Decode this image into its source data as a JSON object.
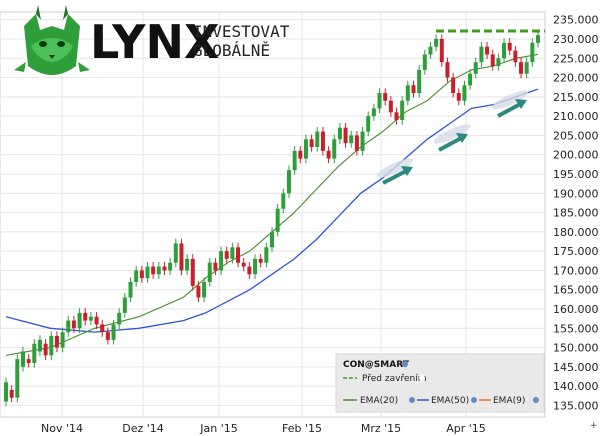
{
  "brand": {
    "name": "LYNX",
    "tagline_line1": "INVESTOVAT",
    "tagline_line2": "GLOBÁLNĚ",
    "logo_icon": "lynx-head-icon",
    "logo_color": "#2e9e3a"
  },
  "legend": {
    "source": "CON@SMART",
    "prev_close_label": "Před zavřením",
    "ema20_label": "EMA(20)",
    "ema50_label": "EMA(50)",
    "ema9_label": "EMA(9)"
  },
  "colors": {
    "up_candle": "#2e9e3a",
    "down_candle": "#c8202a",
    "ema20": "#4a8a2a",
    "ema50": "#2f55d6",
    "ema9": "#e07020",
    "prev_close": "#3e9e1e",
    "arrows": "#2d8a80"
  },
  "chart_data": {
    "type": "candlestick",
    "x_tick_labels": [
      "Nov '14",
      "Dez '14",
      "Jan '15",
      "Feb '15",
      "Mrz '15",
      "Apr '15"
    ],
    "y_tick_labels": [
      "135.000",
      "140.000",
      "145.000",
      "150.000",
      "155.000",
      "160.000",
      "165.000",
      "170.000",
      "175.000",
      "180.000",
      "185.000",
      "190.000",
      "195.000",
      "200.000",
      "205.000",
      "210.000",
      "215.000",
      "220.000",
      "225.000",
      "230.000",
      "235.000"
    ],
    "ylim": [
      132,
      237
    ],
    "y_scale": "linear",
    "grid": true,
    "legend_position": "bottom-right",
    "prev_close": 230,
    "ema20": [
      [
        0,
        148
      ],
      [
        20,
        150
      ],
      [
        40,
        155
      ],
      [
        60,
        158
      ],
      [
        80,
        163
      ],
      [
        90,
        168
      ],
      [
        100,
        172
      ],
      [
        110,
        175
      ],
      [
        120,
        180
      ],
      [
        130,
        185
      ],
      [
        140,
        191
      ],
      [
        150,
        197
      ],
      [
        160,
        202
      ],
      [
        170,
        206
      ],
      [
        180,
        211
      ],
      [
        190,
        214
      ],
      [
        200,
        219
      ],
      [
        210,
        222
      ],
      [
        220,
        223
      ],
      [
        230,
        225
      ],
      [
        240,
        226
      ]
    ],
    "ema50": [
      [
        0,
        158
      ],
      [
        20,
        155
      ],
      [
        40,
        154
      ],
      [
        60,
        155
      ],
      [
        80,
        157
      ],
      [
        90,
        159
      ],
      [
        100,
        162
      ],
      [
        110,
        165
      ],
      [
        120,
        169
      ],
      [
        130,
        173
      ],
      [
        140,
        178
      ],
      [
        150,
        184
      ],
      [
        160,
        190
      ],
      [
        170,
        194
      ],
      [
        180,
        199
      ],
      [
        190,
        204
      ],
      [
        200,
        208
      ],
      [
        210,
        212
      ],
      [
        220,
        213
      ],
      [
        230,
        215
      ],
      [
        240,
        217
      ]
    ],
    "candles": [
      [
        136,
        141
      ],
      [
        139,
        137
      ],
      [
        137,
        147
      ],
      [
        145,
        149
      ],
      [
        147,
        146
      ],
      [
        146,
        151
      ],
      [
        149,
        152
      ],
      [
        151,
        148
      ],
      [
        148,
        153
      ],
      [
        153,
        150
      ],
      [
        150,
        154
      ],
      [
        154,
        157
      ],
      [
        157,
        155
      ],
      [
        155,
        159
      ],
      [
        159,
        157
      ],
      [
        157,
        158
      ],
      [
        158,
        156
      ],
      [
        156,
        154
      ],
      [
        154,
        152
      ],
      [
        152,
        156
      ],
      [
        156,
        159
      ],
      [
        159,
        163
      ],
      [
        163,
        167
      ],
      [
        167,
        170
      ],
      [
        170,
        168
      ],
      [
        168,
        171
      ],
      [
        171,
        169
      ],
      [
        169,
        171
      ],
      [
        171,
        170
      ],
      [
        170,
        172
      ],
      [
        172,
        177
      ],
      [
        177,
        170
      ],
      [
        170,
        173
      ],
      [
        173,
        166
      ],
      [
        166,
        163
      ],
      [
        163,
        167
      ],
      [
        167,
        172
      ],
      [
        172,
        170
      ],
      [
        170,
        175
      ],
      [
        175,
        173
      ],
      [
        173,
        176
      ],
      [
        176,
        172
      ],
      [
        172,
        171
      ],
      [
        171,
        169
      ],
      [
        169,
        173
      ],
      [
        173,
        172
      ],
      [
        172,
        176
      ],
      [
        176,
        180
      ],
      [
        180,
        186
      ],
      [
        186,
        190
      ],
      [
        190,
        196
      ],
      [
        196,
        201
      ],
      [
        201,
        199
      ],
      [
        199,
        204
      ],
      [
        204,
        202
      ],
      [
        202,
        206
      ],
      [
        206,
        201
      ],
      [
        201,
        199
      ],
      [
        199,
        204
      ],
      [
        204,
        207
      ],
      [
        207,
        203
      ],
      [
        203,
        205
      ],
      [
        205,
        201
      ],
      [
        201,
        206
      ],
      [
        206,
        210
      ],
      [
        210,
        212
      ],
      [
        212,
        216
      ],
      [
        216,
        214
      ],
      [
        214,
        211
      ],
      [
        211,
        209
      ],
      [
        209,
        214
      ],
      [
        214,
        218
      ],
      [
        218,
        216
      ],
      [
        216,
        222
      ],
      [
        222,
        226
      ],
      [
        226,
        228
      ],
      [
        228,
        230
      ],
      [
        230,
        224
      ],
      [
        224,
        220
      ],
      [
        220,
        216
      ],
      [
        216,
        214
      ],
      [
        214,
        218
      ],
      [
        218,
        221
      ],
      [
        221,
        224
      ],
      [
        224,
        228
      ],
      [
        228,
        226
      ],
      [
        226,
        223
      ],
      [
        223,
        225
      ],
      [
        225,
        229
      ],
      [
        229,
        227
      ],
      [
        227,
        224
      ],
      [
        224,
        221
      ],
      [
        221,
        224
      ],
      [
        224,
        229
      ],
      [
        229,
        231
      ]
    ]
  }
}
